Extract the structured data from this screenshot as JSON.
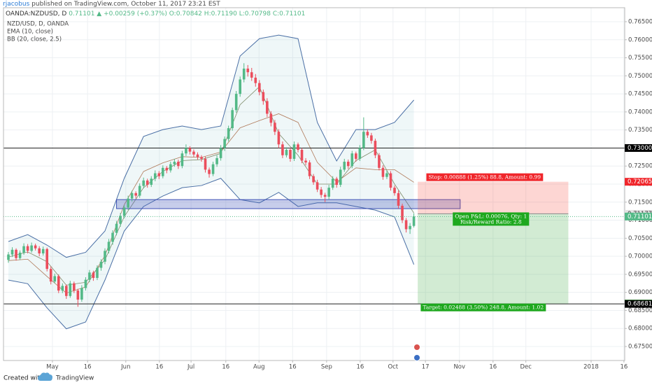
{
  "header": {
    "author": "rjacobus",
    "published": "published on TradingView.com, October 11, 2017 23:21 EST"
  },
  "chart_data": {
    "type": "candlestick",
    "symbol": "OANDA:NZDUSD, D",
    "quote": {
      "last": "0.71101",
      "change": "▲ +0.00259 (+0.37%)",
      "open": "O:0.70842",
      "high": "H:0.71190",
      "low": "L:0.70798",
      "close": "C:0.71101"
    },
    "legend": [
      "NZD/USD, D, OANDA",
      "EMA (10, close)",
      "BB (20, close, 2.5)"
    ],
    "up_color": "#53b987",
    "down_color": "#eb4d5c",
    "candles": [
      [
        0.699,
        0.7012,
        0.6982,
        0.7005
      ],
      [
        0.7005,
        0.7025,
        0.6998,
        0.7018
      ],
      [
        0.7018,
        0.7022,
        0.6988,
        0.6995
      ],
      [
        0.6995,
        0.7016,
        0.699,
        0.701
      ],
      [
        0.701,
        0.7036,
        0.7004,
        0.7028
      ],
      [
        0.7028,
        0.7034,
        0.7008,
        0.7015
      ],
      [
        0.7015,
        0.7038,
        0.701,
        0.703
      ],
      [
        0.703,
        0.7035,
        0.7016,
        0.7022
      ],
      [
        0.7022,
        0.7028,
        0.7,
        0.7008
      ],
      [
        0.7008,
        0.7027,
        0.7002,
        0.702
      ],
      [
        0.702,
        0.7024,
        0.6958,
        0.6965
      ],
      [
        0.6965,
        0.6972,
        0.6922,
        0.693
      ],
      [
        0.693,
        0.6952,
        0.6925,
        0.6945
      ],
      [
        0.6945,
        0.695,
        0.6898,
        0.6905
      ],
      [
        0.6905,
        0.6925,
        0.6898,
        0.6918
      ],
      [
        0.6918,
        0.6922,
        0.6882,
        0.689
      ],
      [
        0.689,
        0.6932,
        0.6885,
        0.6925
      ],
      [
        0.6925,
        0.693,
        0.6898,
        0.6905
      ],
      [
        0.6905,
        0.691,
        0.686,
        0.688
      ],
      [
        0.688,
        0.692,
        0.6874,
        0.6912
      ],
      [
        0.6912,
        0.6942,
        0.6905,
        0.6935
      ],
      [
        0.6935,
        0.6962,
        0.6928,
        0.6955
      ],
      [
        0.6955,
        0.696,
        0.6932,
        0.694
      ],
      [
        0.694,
        0.6975,
        0.6934,
        0.6968
      ],
      [
        0.6968,
        0.6992,
        0.696,
        0.6985
      ],
      [
        0.6985,
        0.7022,
        0.6978,
        0.7015
      ],
      [
        0.7015,
        0.7048,
        0.7008,
        0.704
      ],
      [
        0.704,
        0.7072,
        0.7032,
        0.7065
      ],
      [
        0.7065,
        0.7098,
        0.7058,
        0.709
      ],
      [
        0.709,
        0.712,
        0.7082,
        0.7112
      ],
      [
        0.7112,
        0.7142,
        0.7105,
        0.7135
      ],
      [
        0.7135,
        0.7168,
        0.7128,
        0.716
      ],
      [
        0.716,
        0.7182,
        0.7152,
        0.7175
      ],
      [
        0.7175,
        0.718,
        0.716,
        0.7168
      ],
      [
        0.7168,
        0.7202,
        0.7162,
        0.7195
      ],
      [
        0.7195,
        0.7218,
        0.7188,
        0.721
      ],
      [
        0.721,
        0.7215,
        0.719,
        0.7198
      ],
      [
        0.7198,
        0.7222,
        0.7192,
        0.7215
      ],
      [
        0.7215,
        0.7238,
        0.7208,
        0.723
      ],
      [
        0.723,
        0.7236,
        0.7214,
        0.7222
      ],
      [
        0.7222,
        0.7252,
        0.7216,
        0.7245
      ],
      [
        0.7245,
        0.725,
        0.723,
        0.7238
      ],
      [
        0.7238,
        0.7262,
        0.7232,
        0.7255
      ],
      [
        0.7255,
        0.727,
        0.7248,
        0.7262
      ],
      [
        0.7262,
        0.7268,
        0.7242,
        0.725
      ],
      [
        0.725,
        0.7292,
        0.7244,
        0.7285
      ],
      [
        0.7285,
        0.731,
        0.7278,
        0.73
      ],
      [
        0.73,
        0.7305,
        0.7282,
        0.729
      ],
      [
        0.729,
        0.7296,
        0.7275,
        0.7282
      ],
      [
        0.7282,
        0.7288,
        0.7268,
        0.7275
      ],
      [
        0.7275,
        0.728,
        0.7262,
        0.727
      ],
      [
        0.727,
        0.7276,
        0.7232,
        0.724
      ],
      [
        0.724,
        0.7246,
        0.7218,
        0.7228
      ],
      [
        0.7228,
        0.7262,
        0.7222,
        0.7255
      ],
      [
        0.7255,
        0.728,
        0.7248,
        0.7272
      ],
      [
        0.7272,
        0.7308,
        0.7265,
        0.73
      ],
      [
        0.73,
        0.7332,
        0.7292,
        0.7325
      ],
      [
        0.7325,
        0.7362,
        0.7318,
        0.7355
      ],
      [
        0.7355,
        0.7412,
        0.7348,
        0.7405
      ],
      [
        0.7405,
        0.7458,
        0.7398,
        0.745
      ],
      [
        0.745,
        0.7498,
        0.7442,
        0.749
      ],
      [
        0.749,
        0.7535,
        0.7482,
        0.752
      ],
      [
        0.752,
        0.753,
        0.7498,
        0.751
      ],
      [
        0.751,
        0.7522,
        0.7486,
        0.7495
      ],
      [
        0.7495,
        0.7505,
        0.747,
        0.748
      ],
      [
        0.748,
        0.7488,
        0.7446,
        0.7455
      ],
      [
        0.7455,
        0.7462,
        0.742,
        0.743
      ],
      [
        0.743,
        0.7438,
        0.7386,
        0.7395
      ],
      [
        0.7395,
        0.7402,
        0.736,
        0.737
      ],
      [
        0.737,
        0.7378,
        0.7336,
        0.7345
      ],
      [
        0.7345,
        0.7352,
        0.73,
        0.731
      ],
      [
        0.731,
        0.7318,
        0.7272,
        0.728
      ],
      [
        0.728,
        0.7302,
        0.7274,
        0.7295
      ],
      [
        0.7295,
        0.73,
        0.7262,
        0.727
      ],
      [
        0.727,
        0.7318,
        0.7264,
        0.731
      ],
      [
        0.731,
        0.7315,
        0.7288,
        0.7295
      ],
      [
        0.7295,
        0.73,
        0.7258,
        0.7265
      ],
      [
        0.7265,
        0.7272,
        0.7252,
        0.726
      ],
      [
        0.726,
        0.7266,
        0.7214,
        0.7222
      ],
      [
        0.7222,
        0.7228,
        0.7198,
        0.7205
      ],
      [
        0.7205,
        0.7212,
        0.7178,
        0.7185
      ],
      [
        0.7185,
        0.7192,
        0.7162,
        0.717
      ],
      [
        0.717,
        0.7176,
        0.715,
        0.7165
      ],
      [
        0.7165,
        0.7198,
        0.7158,
        0.719
      ],
      [
        0.719,
        0.7222,
        0.7184,
        0.7215
      ],
      [
        0.7215,
        0.722,
        0.719,
        0.7198
      ],
      [
        0.7198,
        0.7248,
        0.7192,
        0.724
      ],
      [
        0.724,
        0.727,
        0.7234,
        0.7262
      ],
      [
        0.7262,
        0.7268,
        0.7242,
        0.725
      ],
      [
        0.725,
        0.7292,
        0.7244,
        0.7285
      ],
      [
        0.7285,
        0.729,
        0.7262,
        0.727
      ],
      [
        0.727,
        0.7308,
        0.7264,
        0.73
      ],
      [
        0.73,
        0.7385,
        0.7294,
        0.7345
      ],
      [
        0.7345,
        0.7352,
        0.7328,
        0.7335
      ],
      [
        0.7335,
        0.7342,
        0.7312,
        0.732
      ],
      [
        0.732,
        0.7326,
        0.7272,
        0.728
      ],
      [
        0.728,
        0.7286,
        0.7238,
        0.7245
      ],
      [
        0.7245,
        0.7252,
        0.7212,
        0.722
      ],
      [
        0.722,
        0.7238,
        0.7214,
        0.723
      ],
      [
        0.723,
        0.7236,
        0.7182,
        0.719
      ],
      [
        0.719,
        0.7196,
        0.7168,
        0.7175
      ],
      [
        0.7175,
        0.7182,
        0.7132,
        0.714
      ],
      [
        0.714,
        0.7146,
        0.7092,
        0.71
      ],
      [
        0.71,
        0.7106,
        0.7066,
        0.7075
      ],
      [
        0.7075,
        0.7092,
        0.7062,
        0.7084
      ],
      [
        0.70842,
        0.7119,
        0.70798,
        0.71101
      ]
    ],
    "bands": {
      "x": [
        0,
        5,
        10,
        15,
        20,
        25,
        30,
        35,
        40,
        45,
        50,
        55,
        60,
        65,
        70,
        75,
        80,
        85,
        90,
        95,
        100,
        105
      ],
      "upper": [
        0.7041,
        0.706,
        0.7031,
        0.6997,
        0.7011,
        0.707,
        0.7216,
        0.7332,
        0.7351,
        0.7361,
        0.7351,
        0.7361,
        0.7555,
        0.7603,
        0.7613,
        0.7603,
        0.7371,
        0.7264,
        0.7351,
        0.7351,
        0.7371,
        0.7433
      ],
      "lower": [
        0.6934,
        0.6924,
        0.6857,
        0.6799,
        0.6818,
        0.6934,
        0.707,
        0.7138,
        0.7167,
        0.719,
        0.7196,
        0.7216,
        0.7157,
        0.7148,
        0.7177,
        0.7138,
        0.7148,
        0.7148,
        0.7138,
        0.7128,
        0.7109,
        0.6977
      ],
      "basis": [
        0.6988,
        0.6992,
        0.6944,
        0.6898,
        0.6915,
        0.7002,
        0.7143,
        0.7235,
        0.7259,
        0.7276,
        0.7274,
        0.7289,
        0.7356,
        0.7376,
        0.7395,
        0.7371,
        0.726,
        0.7206,
        0.7245,
        0.724,
        0.724,
        0.7205
      ],
      "ema": [
        0.6998,
        0.7012,
        0.6985,
        0.692,
        0.6928,
        0.699,
        0.711,
        0.719,
        0.7235,
        0.7265,
        0.7268,
        0.7285,
        0.742,
        0.747,
        0.734,
        0.728,
        0.72,
        0.72,
        0.7265,
        0.7295,
        0.72,
        0.712
      ],
      "band_color": "#4a6fa5",
      "basis_color": "#b07a5a",
      "ema_color": "#7f8c6a"
    },
    "xlim": [
      -1.27,
      159.6
    ],
    "ylim": [
      0.67112,
      0.76888
    ],
    "xticks": [
      {
        "value": 11.4,
        "label": "May"
      },
      {
        "value": 20.5,
        "label": "16"
      },
      {
        "value": 30.4,
        "label": "Jun"
      },
      {
        "value": 39.1,
        "label": "16"
      },
      {
        "value": 47.3,
        "label": "Jul"
      },
      {
        "value": 56.3,
        "label": "16"
      },
      {
        "value": 64.9,
        "label": "Aug"
      },
      {
        "value": 73.6,
        "label": "16"
      },
      {
        "value": 82.4,
        "label": "Sep"
      },
      {
        "value": 91.1,
        "label": "16"
      },
      {
        "value": 99.6,
        "label": "Oct"
      },
      {
        "value": 108,
        "label": "17"
      },
      {
        "value": 116.8,
        "label": "Nov"
      },
      {
        "value": 125.5,
        "label": "16"
      },
      {
        "value": 134,
        "label": "Dec"
      },
      {
        "value": 150.9,
        "label": "2018"
      },
      {
        "value": 159.4,
        "label": "16"
      }
    ],
    "yticks": [
      {
        "value": 0.675,
        "label": "0.67500"
      },
      {
        "value": 0.68,
        "label": "0.68000"
      },
      {
        "value": 0.685,
        "label": "0.68500"
      },
      {
        "value": 0.69,
        "label": "0.69000"
      },
      {
        "value": 0.695,
        "label": "0.69500"
      },
      {
        "value": 0.7,
        "label": "0.70000"
      },
      {
        "value": 0.705,
        "label": "0.70500"
      },
      {
        "value": 0.71,
        "label": "0.71000"
      },
      {
        "value": 0.715,
        "label": "0.71500"
      },
      {
        "value": 0.72,
        "label": "0.72000"
      },
      {
        "value": 0.725,
        "label": "0.72500"
      },
      {
        "value": 0.73,
        "label": "0.73000"
      },
      {
        "value": 0.735,
        "label": "0.73500"
      },
      {
        "value": 0.74,
        "label": "0.74000"
      },
      {
        "value": 0.745,
        "label": "0.74500"
      },
      {
        "value": 0.75,
        "label": "0.75000"
      },
      {
        "value": 0.755,
        "label": "0.75500"
      },
      {
        "value": 0.76,
        "label": "0.76000"
      },
      {
        "value": 0.765,
        "label": "0.76500"
      }
    ],
    "grid": true,
    "hlines": [
      0.73,
      0.68681
    ],
    "zone": {
      "x": [
        28,
        117
      ],
      "low": 0.7132,
      "high": 0.7157
    },
    "position": {
      "x": [
        106,
        145
      ],
      "entry": 0.71177,
      "stop": 0.72065,
      "target": 0.68689,
      "stop_label": "Stop: 0.00888 (1.25%) 88.8, Amount: 0.99",
      "pnl_label": "Open P&L: 0.00076, Qty: 1",
      "rr_label": "Risk/Reward Ratio: 2.8",
      "target_label": "Target: 0.02488 (3.50%) 248.8, Amount: 1.02"
    },
    "price_tags": [
      {
        "value": 0.73,
        "label": "0.73000",
        "color": "#000000",
        "text_color": "#ffffff"
      },
      {
        "value": 0.72065,
        "label": "0.72065",
        "color": "#f0262b",
        "text_color": "#ffffff"
      },
      {
        "value": 0.71177,
        "label": "0.71177",
        "color": "#e3e3e3",
        "text_color": "#333333"
      },
      {
        "value": 0.71101,
        "label": "0.71101",
        "color": "#53b987",
        "text_color": "#ffffff"
      },
      {
        "value": 0.68689,
        "label": "0.68689",
        "color": "#1ea81e",
        "text_color": "#ffffff"
      },
      {
        "value": 0.68681,
        "label": "0.68681",
        "color": "#000000",
        "text_color": "#ffffff"
      }
    ]
  },
  "footer": {
    "created": "Created with",
    "brand": "TradingView"
  }
}
